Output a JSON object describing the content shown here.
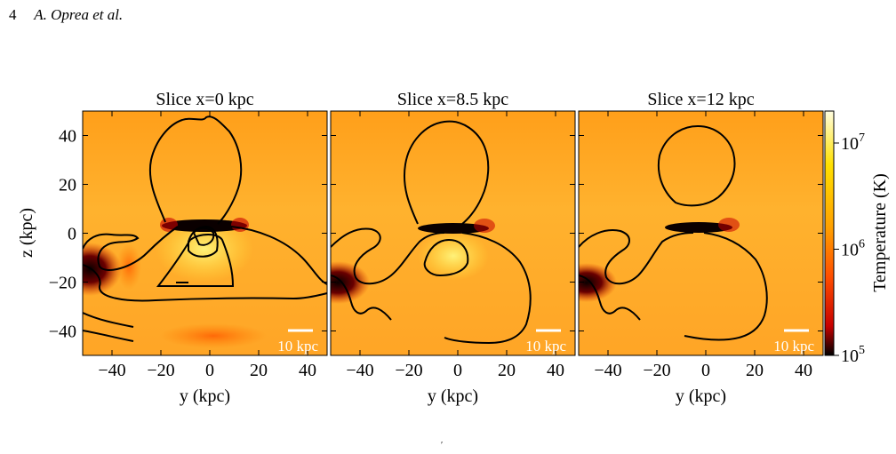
{
  "header": {
    "page_number": "4",
    "authors": "A. Oprea et al."
  },
  "chart_data": {
    "type": "heatmap",
    "panels": [
      {
        "title": "Slice x=0 kpc",
        "scale_label": "10 kpc"
      },
      {
        "title": "Slice x=8.5 kpc",
        "scale_label": "10 kpc"
      },
      {
        "title": "Slice x=12 kpc",
        "scale_label": "10 kpc"
      }
    ],
    "xlabel": "y  (kpc)",
    "ylabel": "z  (kpc)",
    "xlim": [
      -52,
      48
    ],
    "ylim": [
      -50,
      50
    ],
    "xticks": [
      -40,
      -20,
      0,
      20,
      40
    ],
    "xtick_labels": [
      "−40",
      "−20",
      "0",
      "20",
      "40"
    ],
    "yticks": [
      40,
      20,
      0,
      -20,
      -40
    ],
    "ytick_labels": [
      "40",
      "20",
      "0",
      "−20",
      "−40"
    ],
    "colorbar": {
      "label": "Temperature  (K)",
      "scale": "log",
      "range": [
        100000,
        20000000
      ],
      "ticks": [
        {
          "value": 10000000,
          "base": "10",
          "exp": "7"
        },
        {
          "value": 1000000,
          "base": "10",
          "exp": "6"
        },
        {
          "value": 100000,
          "base": "10",
          "exp": "5"
        }
      ],
      "colors": [
        "#000000",
        "#c80000",
        "#ff4d00",
        "#ff9f00",
        "#ffe000",
        "#fffde0"
      ]
    }
  },
  "footer_glyph": "′"
}
